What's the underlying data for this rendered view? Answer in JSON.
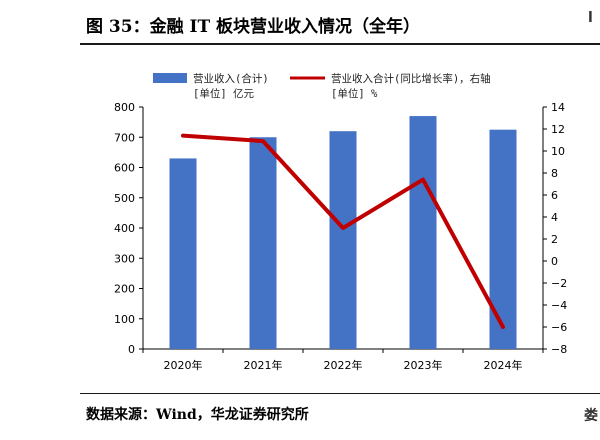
{
  "figure": {
    "title": "图 35：金融 IT 板块营业收入情况（全年）",
    "source": "数据来源：Wind，华龙证券研究所",
    "edge_fragment_top": "l",
    "edge_fragment_bottom": "娄"
  },
  "chart_data": {
    "type": "bar",
    "categories": [
      "2020年",
      "2021年",
      "2022年",
      "2023年",
      "2024年"
    ],
    "series": [
      {
        "name": "营业收入(合计)",
        "unit_label": "[单位] 亿元",
        "type": "bar",
        "axis": "left",
        "color": "#4472C4",
        "values": [
          630,
          700,
          720,
          770,
          725
        ]
      },
      {
        "name": "营业收入合计(同比增长率)，右轴",
        "unit_label": "[单位] %",
        "type": "line",
        "axis": "right",
        "color": "#C00000",
        "values": [
          11.4,
          10.9,
          3.0,
          7.4,
          -6.0
        ]
      }
    ],
    "y_left": {
      "min": 0,
      "max": 800,
      "step": 100,
      "ticks": [
        "0",
        "100",
        "200",
        "300",
        "400",
        "500",
        "600",
        "700",
        "800"
      ]
    },
    "y_right": {
      "min": -8,
      "max": 14,
      "step": 2,
      "ticks": [
        "−8",
        "−6",
        "−4",
        "−2",
        "0",
        "2",
        "4",
        "6",
        "8",
        "10",
        "12",
        "14"
      ]
    },
    "grid": false,
    "legend_position": "top"
  }
}
